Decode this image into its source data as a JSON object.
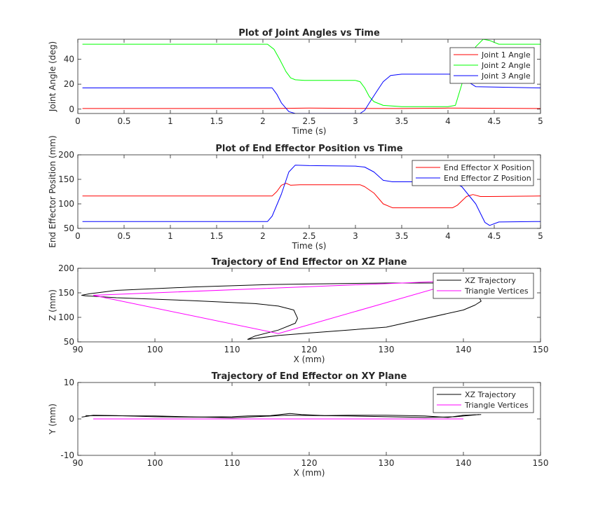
{
  "chart_data": [
    {
      "type": "line",
      "title": "Plot of Joint Angles vs Time",
      "xlabel": "Time (s)",
      "ylabel": "Joint Angle (deg)",
      "xlim": [
        0,
        5
      ],
      "ylim": [
        -3.5,
        56
      ],
      "xticks": [
        0,
        0.5,
        1,
        1.5,
        2,
        2.5,
        3,
        3.5,
        4,
        4.5,
        5
      ],
      "yticks": [
        0,
        20,
        40
      ],
      "legend_position": "top-right",
      "series": [
        {
          "name": "Joint 1 Angle",
          "color": "#ff0000",
          "x": [
            0.05,
            2.1,
            2.5,
            3.0,
            3.5,
            4.0,
            5.0
          ],
          "y": [
            0.5,
            0.5,
            0.8,
            0.6,
            0.5,
            0.8,
            0.5
          ]
        },
        {
          "name": "Joint 2 Angle",
          "color": "#00ff00",
          "x": [
            0.05,
            2.05,
            2.12,
            2.18,
            2.25,
            2.3,
            2.35,
            2.45,
            3.0,
            3.05,
            3.1,
            3.15,
            3.2,
            3.3,
            3.5,
            4.0,
            4.08,
            4.15,
            4.2,
            4.3,
            4.38,
            4.45,
            4.55,
            4.65,
            5.0
          ],
          "y": [
            52,
            52,
            48,
            40,
            30,
            25,
            23.5,
            23,
            23,
            22,
            17,
            10,
            6,
            3,
            2,
            2,
            3,
            20,
            35,
            50,
            56,
            55,
            52,
            52,
            52
          ]
        },
        {
          "name": "Joint 3 Angle",
          "color": "#0000ff",
          "x": [
            0.05,
            2.1,
            2.15,
            2.2,
            2.28,
            2.35,
            3.05,
            3.1,
            3.15,
            3.22,
            3.3,
            3.38,
            3.5,
            4.05,
            4.15,
            4.3,
            5.0
          ],
          "y": [
            17,
            17,
            12,
            5,
            -2,
            -3.5,
            -3.5,
            -1,
            5,
            13,
            22,
            27,
            28,
            28,
            25,
            18,
            17
          ]
        }
      ]
    },
    {
      "type": "line",
      "title": "Plot of End Effector Position vs Time",
      "xlabel": "Time (s)",
      "ylabel": "End Effector Position (mm)",
      "xlim": [
        0,
        5
      ],
      "ylim": [
        50,
        200
      ],
      "xticks": [
        0,
        0.5,
        1,
        1.5,
        2,
        2.5,
        3,
        3.5,
        4,
        4.5,
        5
      ],
      "yticks": [
        50,
        100,
        150,
        200
      ],
      "legend_position": "top-right",
      "series": [
        {
          "name": "End Effector X Position",
          "color": "#ff0000",
          "x": [
            0.05,
            2.1,
            2.15,
            2.2,
            2.25,
            2.3,
            2.4,
            3.05,
            3.1,
            3.2,
            3.3,
            3.4,
            4.05,
            4.1,
            4.2,
            4.27,
            4.35,
            4.45,
            5.0
          ],
          "y": [
            116,
            116,
            125,
            138,
            142,
            138,
            139,
            139,
            135,
            122,
            100,
            92,
            92,
            97,
            115,
            119,
            115,
            115,
            116
          ]
        },
        {
          "name": "End Effector Z Position",
          "color": "#0000ff",
          "x": [
            0.05,
            2.05,
            2.1,
            2.2,
            2.28,
            2.35,
            2.5,
            3.0,
            3.1,
            3.2,
            3.3,
            3.4,
            4.05,
            4.15,
            4.3,
            4.4,
            4.45,
            4.55,
            5.0
          ],
          "y": [
            64,
            64,
            75,
            120,
            165,
            179,
            178,
            177,
            175,
            165,
            148,
            145,
            145,
            135,
            100,
            62,
            56,
            63,
            64
          ]
        }
      ]
    },
    {
      "type": "line",
      "title": "Trajectory of End Effector on XZ Plane",
      "xlabel": "X (mm)",
      "ylabel": "Z (mm)",
      "xlim": [
        90,
        150
      ],
      "ylim": [
        50,
        200
      ],
      "xticks": [
        90,
        100,
        110,
        120,
        130,
        140,
        150
      ],
      "yticks": [
        50,
        100,
        150,
        200
      ],
      "legend_position": "top-right",
      "series": [
        {
          "name": "XZ Trajectory",
          "color": "#000000",
          "x": [
            112,
            116,
            120,
            130,
            140,
            141.5,
            142.3,
            141,
            130,
            115,
            105,
            95,
            91.5,
            90.5,
            91,
            95,
            105,
            113,
            116,
            118,
            118.5,
            118.2,
            116,
            113,
            112
          ],
          "y": [
            55,
            63,
            68,
            80,
            115,
            125,
            133,
            170,
            170,
            167,
            162,
            155,
            148,
            145,
            144,
            140,
            134,
            128,
            123,
            115,
            98,
            88,
            74,
            62,
            55
          ]
        },
        {
          "name": "Triangle Vertices",
          "color": "#ff00ff",
          "x": [
            92,
            140,
            116,
            92
          ],
          "y": [
            145,
            175,
            67,
            145
          ]
        }
      ]
    },
    {
      "type": "line",
      "title": "Trajectory of End Effector on XY Plane",
      "xlabel": "X (mm)",
      "ylabel": "Y (mm)",
      "xlim": [
        90,
        150
      ],
      "ylim": [
        -10,
        10
      ],
      "xticks": [
        90,
        100,
        110,
        120,
        130,
        140,
        150
      ],
      "yticks": [
        -10,
        0,
        10
      ],
      "legend_position": "top-right",
      "legend_entries": [
        "XZ Trajectory",
        "Triangle Vertices"
      ],
      "series": [
        {
          "name": "XZ Trajectory",
          "color": "#000000",
          "x": [
            90.5,
            92,
            95,
            100,
            105,
            110,
            112,
            115,
            117.5,
            119,
            122,
            125,
            130,
            135,
            138,
            140,
            142.3
          ],
          "y": [
            0.5,
            1.0,
            0.9,
            0.6,
            0.5,
            0.6,
            0.8,
            0.9,
            1.5,
            1.2,
            0.9,
            1.0,
            1.0,
            0.8,
            0.4,
            1.0,
            1.2
          ]
        },
        {
          "name": "XZ Trajectory",
          "color": "#000000",
          "x": [
            91,
            100,
            110,
            117,
            125,
            135,
            139,
            142
          ],
          "y": [
            0.9,
            0.8,
            0.3,
            1.0,
            0.8,
            0.4,
            0.6,
            1.2
          ]
        },
        {
          "name": "Triangle Vertices",
          "color": "#ff00ff",
          "x": [
            92,
            140
          ],
          "y": [
            0,
            0
          ]
        }
      ]
    }
  ]
}
